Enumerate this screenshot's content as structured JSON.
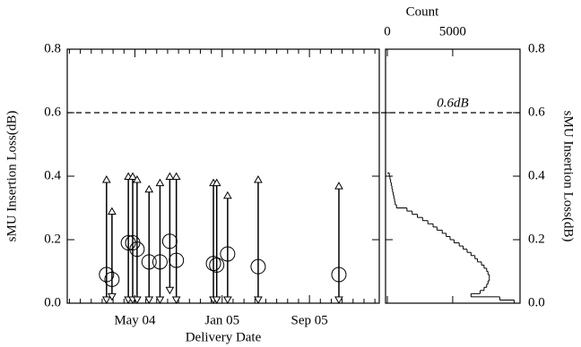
{
  "chart_data": [
    {
      "type": "range",
      "xlabel": "Delivery Date",
      "ylabel": "sMU Insertion Loss(dB)",
      "xlim": [
        -2.2,
        26.4
      ],
      "xticks": [
        {
          "value": 4,
          "label": "May 04"
        },
        {
          "value": 12,
          "label": "Jan 05"
        },
        {
          "value": 20,
          "label": "Sep 05"
        }
      ],
      "minor_xticks": [
        -2,
        -1,
        0,
        1,
        2,
        3,
        5,
        6,
        7,
        8,
        9,
        10,
        11,
        13,
        14,
        15,
        16,
        17,
        18,
        19,
        21,
        22,
        23,
        24,
        25,
        26
      ],
      "ylim": [
        0,
        0.8
      ],
      "yticks": [
        {
          "value": 0,
          "label": "0.0"
        },
        0.2,
        0.4,
        0.6,
        0.8
      ],
      "x": [
        1.4,
        1.9,
        3.4,
        3.8,
        4.2,
        5.3,
        6.3,
        7.2,
        7.8,
        11.2,
        11.5,
        12.5,
        15.3,
        22.7
      ],
      "max": [
        0.39,
        0.29,
        0.4,
        0.4,
        0.39,
        0.36,
        0.38,
        0.4,
        0.4,
        0.38,
        0.38,
        0.34,
        0.39,
        0.37
      ],
      "min": [
        0.01,
        0.02,
        0.01,
        0.01,
        0.01,
        0.01,
        0.01,
        0.04,
        0.01,
        0.01,
        0.01,
        0.01,
        0.01,
        0.01
      ],
      "mean": [
        0.09,
        0.075,
        0.19,
        0.19,
        0.17,
        0.13,
        0.13,
        0.195,
        0.135,
        0.125,
        0.12,
        0.155,
        0.115,
        0.09
      ],
      "reference_line": {
        "value": 0.6,
        "label": "0.6dB"
      }
    },
    {
      "type": "histogram",
      "xlabel": "Count",
      "ylabel": "sMU Insertion Loss(dB)",
      "xlim": [
        0,
        10150
      ],
      "xticks": [
        0,
        5000
      ],
      "ylim": [
        0,
        0.8
      ],
      "yticks": [
        {
          "value": 0,
          "label": "0.0"
        },
        0.2,
        0.4,
        0.6,
        0.8
      ],
      "bins": [
        0,
        0.01,
        0.02,
        0.03,
        0.04,
        0.05,
        0.06,
        0.07,
        0.08,
        0.09,
        0.1,
        0.11,
        0.12,
        0.13,
        0.14,
        0.15,
        0.16,
        0.17,
        0.18,
        0.19,
        0.2,
        0.21,
        0.22,
        0.23,
        0.24,
        0.25,
        0.26,
        0.27,
        0.28,
        0.29,
        0.3,
        0.31,
        0.32,
        0.33,
        0.34,
        0.35,
        0.36,
        0.37,
        0.38,
        0.39,
        0.4,
        0.41
      ],
      "counts": [
        9700,
        8600,
        6400,
        7100,
        7400,
        7600,
        7700,
        7800,
        7800,
        7700,
        7600,
        7400,
        7200,
        6900,
        6700,
        6400,
        6100,
        5800,
        5500,
        5100,
        4800,
        4500,
        4200,
        3800,
        3500,
        3100,
        2700,
        2300,
        1900,
        1500,
        700,
        600,
        550,
        500,
        450,
        400,
        350,
        300,
        250,
        200,
        150
      ]
    }
  ]
}
